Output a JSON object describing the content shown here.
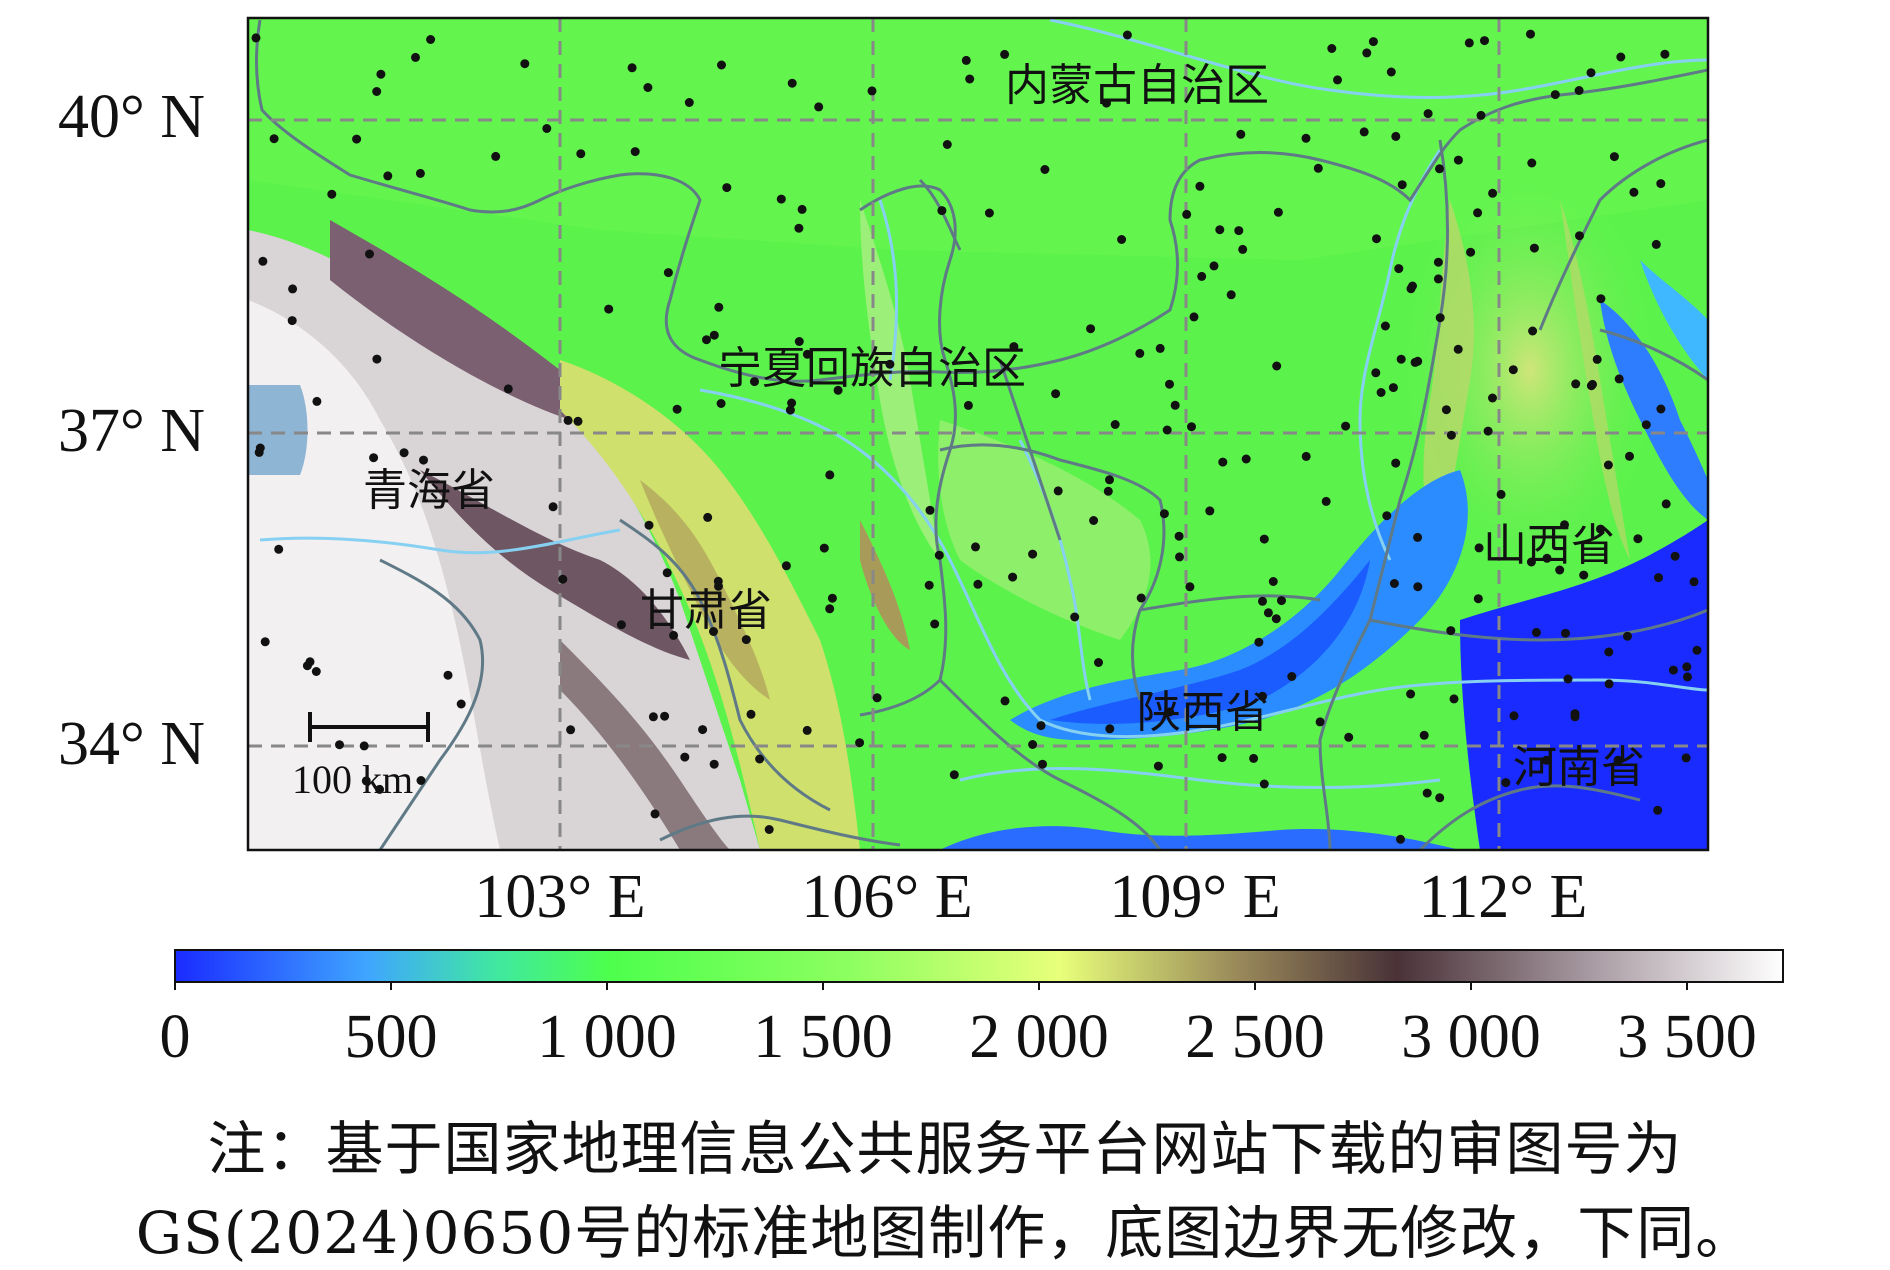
{
  "map": {
    "provinces": [
      {
        "id": "neimenggu",
        "name": "内蒙古自治区"
      },
      {
        "id": "ningxia",
        "name": "宁夏回族自治区"
      },
      {
        "id": "qinghai",
        "name": "青海省"
      },
      {
        "id": "gansu",
        "name": "甘肃省"
      },
      {
        "id": "shanxi",
        "name": "山西省"
      },
      {
        "id": "shaanxi",
        "name": "陕西省"
      },
      {
        "id": "henan",
        "name": "河南省"
      }
    ],
    "lat_ticks": [
      "40° N",
      "37° N",
      "34° N"
    ],
    "lon_ticks": [
      "103° E",
      "106° E",
      "109° E",
      "112° E"
    ],
    "scale_bar": {
      "label": "100 km"
    },
    "stations_note": "black dots mark stations",
    "colors": {
      "water": "#7fa7c9",
      "border": "#5f7a86",
      "grid": "#888888",
      "river": "#8fd0f0"
    }
  },
  "colorbar": {
    "ticks": [
      "0",
      "500",
      "1 000",
      "1 500",
      "2 000",
      "2 500",
      "3 000",
      "3 500"
    ],
    "colors": [
      "#1a2bff",
      "#3fb8ff",
      "#4dff4d",
      "#e8ff7a",
      "#7a6a4a",
      "#503a40",
      "#a89aa2",
      "#ffffff"
    ]
  },
  "note": {
    "line1": "注：基于国家地理信息公共服务平台网站下载的审图号为",
    "line2": "GS(2024)0650号的标准地图制作，底图边界无修改，下同。"
  }
}
